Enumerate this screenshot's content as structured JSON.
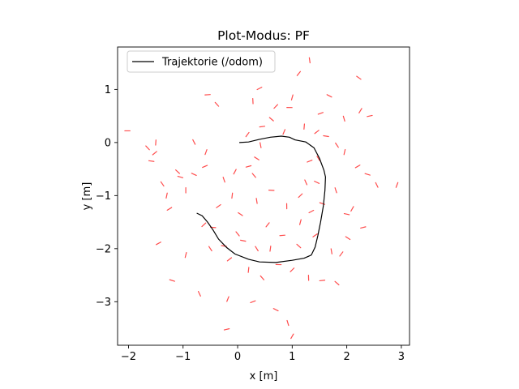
{
  "chart_data": {
    "type": "line",
    "title": "Plot-Modus: PF",
    "xlabel": "x [m]",
    "ylabel": "y [m]",
    "xlim": [
      -2.2,
      3.15
    ],
    "ylim": [
      -3.82,
      1.8
    ],
    "xticks": [
      -2,
      -1,
      0,
      1,
      2,
      3
    ],
    "yticks": [
      1,
      0,
      -1,
      -2,
      -3
    ],
    "grid": false,
    "legend_position": "top-left",
    "series": [
      {
        "name": "Trajektorie (/odom)",
        "color": "#000000",
        "points": [
          [
            0.03,
            0.0
          ],
          [
            0.2,
            0.01
          ],
          [
            0.4,
            0.06
          ],
          [
            0.6,
            0.1
          ],
          [
            0.8,
            0.12
          ],
          [
            0.95,
            0.1
          ],
          [
            1.05,
            0.05
          ],
          [
            1.25,
            0.01
          ],
          [
            1.4,
            -0.1
          ],
          [
            1.5,
            -0.3
          ],
          [
            1.58,
            -0.52
          ],
          [
            1.61,
            -0.65
          ],
          [
            1.6,
            -0.9
          ],
          [
            1.57,
            -1.2
          ],
          [
            1.52,
            -1.5
          ],
          [
            1.47,
            -1.75
          ],
          [
            1.42,
            -1.97
          ],
          [
            1.35,
            -2.12
          ],
          [
            1.22,
            -2.18
          ],
          [
            1.0,
            -2.22
          ],
          [
            0.7,
            -2.26
          ],
          [
            0.4,
            -2.25
          ],
          [
            0.2,
            -2.2
          ],
          [
            -0.05,
            -2.1
          ],
          [
            -0.2,
            -1.98
          ],
          [
            -0.35,
            -1.82
          ],
          [
            -0.45,
            -1.65
          ],
          [
            -0.55,
            -1.5
          ],
          [
            -0.65,
            -1.38
          ],
          [
            -0.75,
            -1.33
          ]
        ]
      },
      {
        "name": "",
        "kind": "particles",
        "color": "#ff0000",
        "points": [
          [
            -2.02,
            0.22
          ],
          [
            -1.65,
            -0.1
          ],
          [
            -1.5,
            0.0
          ],
          [
            -1.52,
            -0.2
          ],
          [
            -1.58,
            -0.35
          ],
          [
            -1.38,
            -0.78
          ],
          [
            -1.3,
            -1.0
          ],
          [
            -1.25,
            -1.25
          ],
          [
            -1.05,
            -0.65
          ],
          [
            -0.8,
            0.01
          ],
          [
            -0.58,
            -0.18
          ],
          [
            -0.6,
            -0.45
          ],
          [
            -0.8,
            -0.6
          ],
          [
            -0.25,
            -0.7
          ],
          [
            -0.05,
            -0.55
          ],
          [
            0.2,
            -0.45
          ],
          [
            0.35,
            -0.3
          ],
          [
            0.42,
            -0.05
          ],
          [
            0.18,
            0.15
          ],
          [
            0.45,
            0.3
          ],
          [
            0.62,
            0.44
          ],
          [
            0.28,
            0.78
          ],
          [
            0.7,
            0.68
          ],
          [
            0.95,
            0.66
          ],
          [
            -0.38,
            0.72
          ],
          [
            1.22,
            0.3
          ],
          [
            1.45,
            0.2
          ],
          [
            1.62,
            0.12
          ],
          [
            1.82,
            -0.05
          ],
          [
            1.96,
            -0.18
          ],
          [
            2.2,
            -0.45
          ],
          [
            2.38,
            -0.6
          ],
          [
            2.55,
            -0.8
          ],
          [
            2.92,
            -0.8
          ],
          [
            1.32,
            -0.35
          ],
          [
            1.45,
            -0.75
          ],
          [
            1.8,
            -0.9
          ],
          [
            2.1,
            -1.25
          ],
          [
            2.3,
            -1.6
          ],
          [
            2.02,
            -1.8
          ],
          [
            1.72,
            -2.05
          ],
          [
            1.9,
            -2.1
          ],
          [
            1.55,
            -2.6
          ],
          [
            1.82,
            -2.65
          ],
          [
            1.3,
            -2.55
          ],
          [
            1.0,
            -2.4
          ],
          [
            0.75,
            -2.3
          ],
          [
            0.45,
            -2.55
          ],
          [
            0.2,
            -2.4
          ],
          [
            -0.15,
            -2.2
          ],
          [
            -0.25,
            -1.95
          ],
          [
            -0.5,
            -2.0
          ],
          [
            -0.95,
            -2.12
          ],
          [
            -1.45,
            -1.9
          ],
          [
            -1.2,
            -2.6
          ],
          [
            -0.7,
            -2.85
          ],
          [
            -0.18,
            -2.95
          ],
          [
            0.28,
            -3.0
          ],
          [
            0.7,
            -3.15
          ],
          [
            0.92,
            -3.4
          ],
          [
            1.0,
            -3.65
          ],
          [
            -0.2,
            -3.52
          ],
          [
            0.05,
            -1.35
          ],
          [
            0.35,
            -1.1
          ],
          [
            0.55,
            -1.55
          ],
          [
            0.82,
            -1.75
          ],
          [
            1.12,
            -1.95
          ],
          [
            0.9,
            -1.2
          ],
          [
            1.15,
            -1.0
          ],
          [
            0.62,
            -0.9
          ],
          [
            0.3,
            -0.62
          ],
          [
            -0.1,
            -1.0
          ],
          [
            -0.35,
            -1.2
          ],
          [
            0.1,
            -1.85
          ],
          [
            0.35,
            -2.0
          ],
          [
            1.15,
            -1.5
          ],
          [
            1.35,
            -1.3
          ],
          [
            1.55,
            -1.15
          ],
          [
            1.25,
            -0.75
          ],
          [
            0.85,
            0.2
          ],
          [
            1.52,
            0.55
          ],
          [
            1.68,
            0.88
          ],
          [
            1.95,
            0.45
          ],
          [
            2.25,
            0.6
          ],
          [
            2.42,
            0.5
          ],
          [
            2.22,
            1.22
          ],
          [
            1.32,
            1.55
          ],
          [
            1.12,
            1.3
          ],
          [
            -0.55,
            0.9
          ],
          [
            -1.1,
            -0.55
          ],
          [
            -0.95,
            -0.9
          ],
          [
            -0.62,
            -1.55
          ],
          [
            -0.45,
            -1.6
          ],
          [
            0.0,
            -1.72
          ],
          [
            0.6,
            -2.0
          ],
          [
            1.42,
            -1.75
          ],
          [
            2.0,
            -1.35
          ],
          [
            1.48,
            -0.3
          ],
          [
            1.0,
            0.85
          ],
          [
            0.4,
            1.02
          ]
        ]
      }
    ]
  }
}
